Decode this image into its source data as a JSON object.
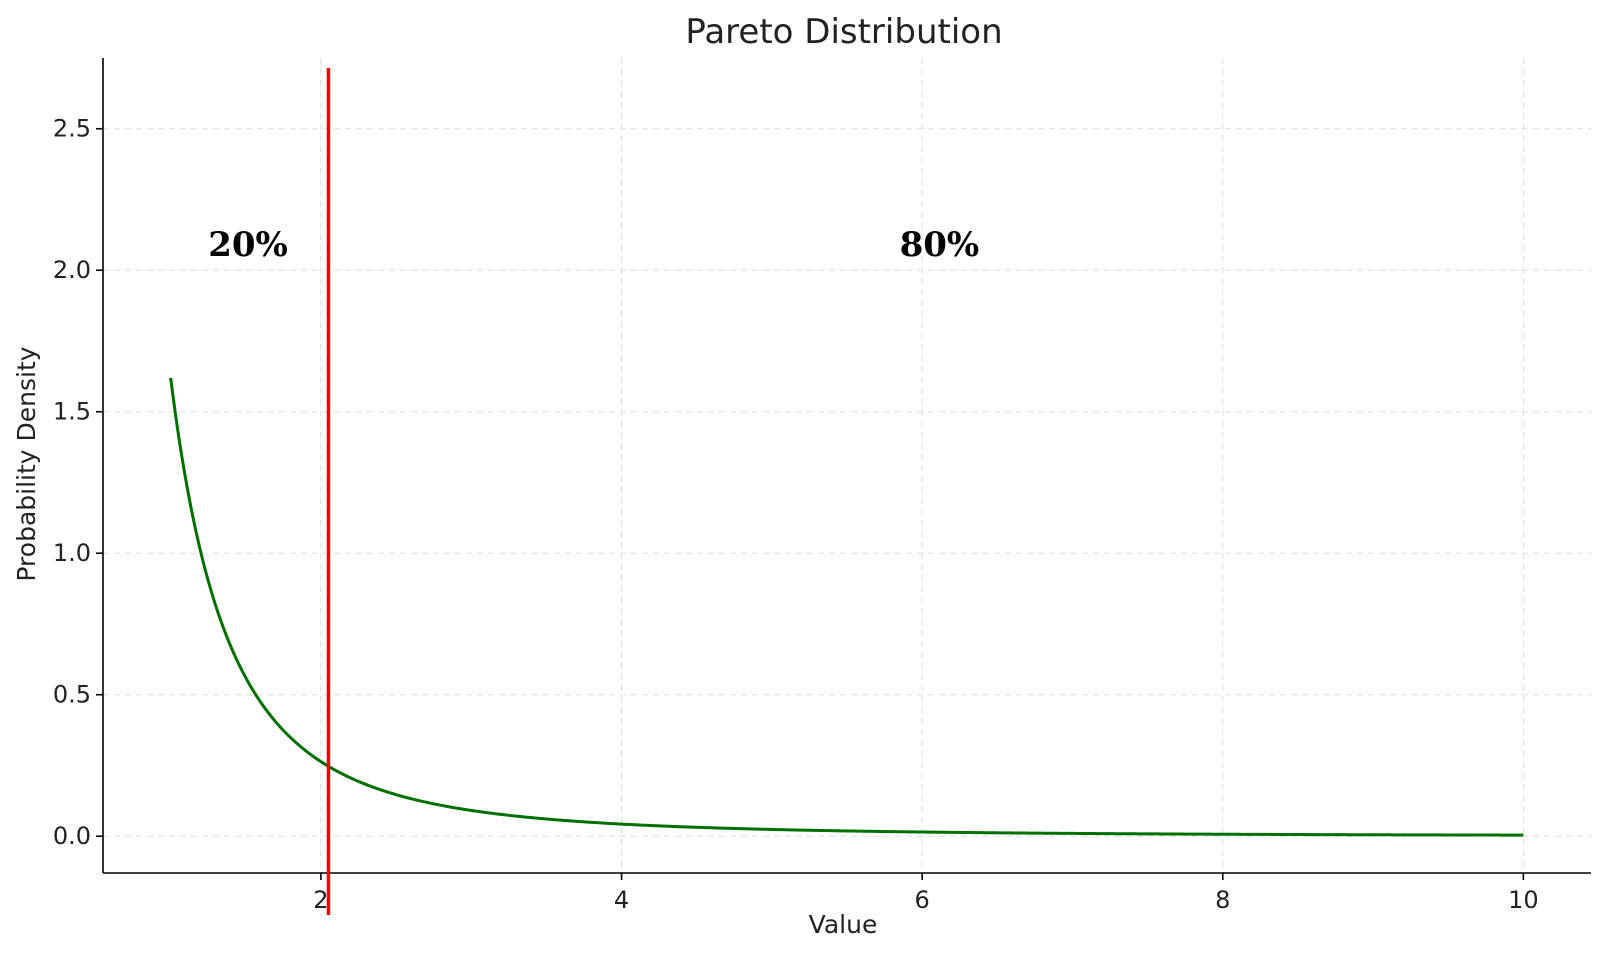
{
  "chart_data": {
    "type": "line",
    "title": "Pareto Distribution",
    "xlabel": "Value",
    "ylabel": "Probability Density",
    "xlim": [
      0.55,
      10.45
    ],
    "ylim": [
      -0.13,
      2.75
    ],
    "x_ticks": [
      2,
      4,
      6,
      8,
      10
    ],
    "y_ticks": [
      0.0,
      0.5,
      1.0,
      1.5,
      2.0,
      2.5
    ],
    "x_tick_labels": [
      "2",
      "4",
      "6",
      "8",
      "10"
    ],
    "y_tick_labels": [
      "0.0",
      "0.5",
      "1.0",
      "1.5",
      "2.0",
      "2.5"
    ],
    "grid": true,
    "series": [
      {
        "distribution": "pareto",
        "shape": 1.62,
        "scale": 1.0,
        "x_range": [
          1.0,
          10.0
        ],
        "color": "#007000"
      }
    ],
    "vertical_line": {
      "x": 2.05,
      "color": "#ff0000"
    },
    "annotations": [
      {
        "text": "20%",
        "x": 1.25,
        "y": 2.05
      },
      {
        "text": "80%",
        "x": 5.85,
        "y": 2.05
      }
    ]
  }
}
